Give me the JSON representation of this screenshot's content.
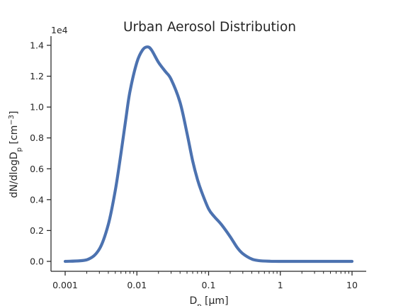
{
  "chart_data": {
    "type": "line",
    "title": "Urban Aerosol Distribution",
    "xlabel": {
      "main": "D",
      "sub": "p",
      "unit": " [μm]"
    },
    "ylabel": {
      "a": "dN/dlogD",
      "sub": "p",
      "b": " [cm",
      "sup": "−3",
      "c": "]"
    },
    "x_scale": "log",
    "xlim": [
      0.001,
      10
    ],
    "ylim": [
      0,
      14000
    ],
    "y_offset_label": "1e4",
    "x_ticks": [
      {
        "value": 0.001,
        "label": "0.001"
      },
      {
        "value": 0.01,
        "label": "0.01"
      },
      {
        "value": 0.1,
        "label": "0.1"
      },
      {
        "value": 1,
        "label": "1"
      },
      {
        "value": 10,
        "label": "10"
      }
    ],
    "y_ticks": [
      {
        "value": 0,
        "label": "0.0"
      },
      {
        "value": 2000,
        "label": "0.2"
      },
      {
        "value": 4000,
        "label": "0.4"
      },
      {
        "value": 6000,
        "label": "0.6"
      },
      {
        "value": 8000,
        "label": "0.8"
      },
      {
        "value": 10000,
        "label": "1.0"
      },
      {
        "value": 12000,
        "label": "1.2"
      },
      {
        "value": 14000,
        "label": "1.4"
      }
    ],
    "grid": false,
    "line_color": "#4c72b0",
    "series": [
      {
        "x": [
          0.001,
          0.002,
          0.003,
          0.004,
          0.005,
          0.006,
          0.007,
          0.008,
          0.01,
          0.012,
          0.014,
          0.016,
          0.02,
          0.025,
          0.03,
          0.04,
          0.05,
          0.06,
          0.07,
          0.08,
          0.1,
          0.12,
          0.15,
          0.2,
          0.25,
          0.3,
          0.4,
          0.5,
          0.7,
          1,
          2,
          5,
          10
        ],
        "y": [
          0,
          100,
          800,
          2400,
          4600,
          7000,
          9200,
          11000,
          12900,
          13700,
          13900,
          13700,
          12900,
          12300,
          11800,
          10300,
          8300,
          6500,
          5300,
          4500,
          3400,
          2900,
          2400,
          1600,
          900,
          500,
          150,
          50,
          10,
          0,
          0,
          0,
          0
        ]
      }
    ]
  }
}
